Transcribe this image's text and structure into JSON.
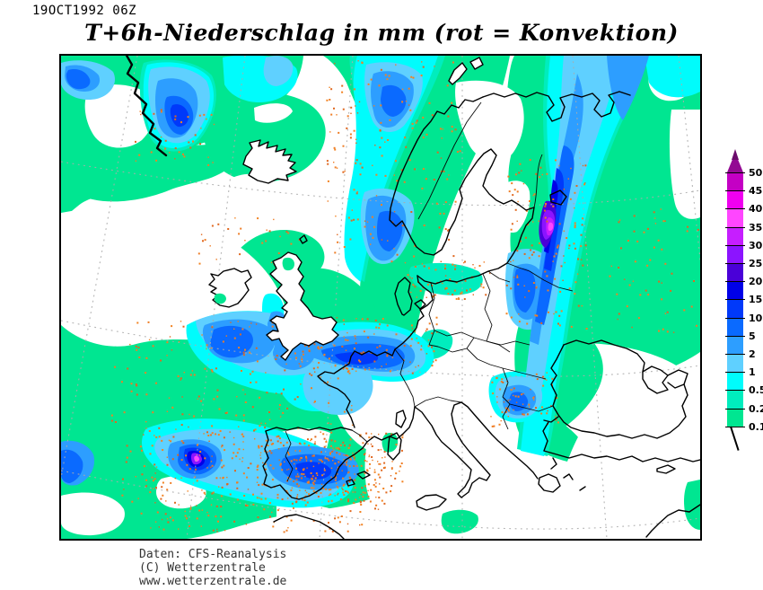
{
  "header": {
    "datetime": "19OCT1992 06Z",
    "title": "T+6h-Niederschlag in mm (rot = Konvektion)"
  },
  "legend": {
    "ticks_top_to_bottom": [
      "50",
      "45",
      "40",
      "35",
      "30",
      "25",
      "20",
      "15",
      "10",
      "5",
      "2",
      "1",
      "0.5",
      "0.2",
      "0.1"
    ],
    "band_colors_top_to_bottom": [
      "#C400C4",
      "#F000F0",
      "#FF46FF",
      "#C61EFF",
      "#8C14FF",
      "#4A00D8",
      "#0000E8",
      "#0039FA",
      "#0A6AFF",
      "#2D9EFF",
      "#5FD0FF",
      "#00FCFC",
      "#00EDBE",
      "#00E691"
    ],
    "overflow_arrow_color": "#930993",
    "overflow_arrow_tip_color": "#6B0C6C"
  },
  "palette": {
    "p01": "#00E691",
    "p02": "#00EDBE",
    "p05": "#00FCFC",
    "p1": "#5FD0FF",
    "p2": "#2D9EFF",
    "p5": "#0A6AFF",
    "p10": "#0039FA",
    "p15": "#0000E8",
    "p20": "#4A00D8",
    "p25": "#8C14FF",
    "p30": "#C61EFF",
    "p35": "#FF46FF",
    "p40": "#F000F0",
    "p45": "#C400C4"
  },
  "map": {
    "region_label": "Europe / North Atlantic",
    "background": "#FFFFFF",
    "coastline_color": "#000000",
    "graticule_color": "#ABABAB",
    "convection_dot_color": "#EE7D26",
    "convection_note": "rot = Konvektion"
  },
  "footer": {
    "lines": [
      "Daten: CFS-Reanalysis",
      "(C) Wetterzentrale",
      "www.wetterzentrale.de"
    ]
  }
}
